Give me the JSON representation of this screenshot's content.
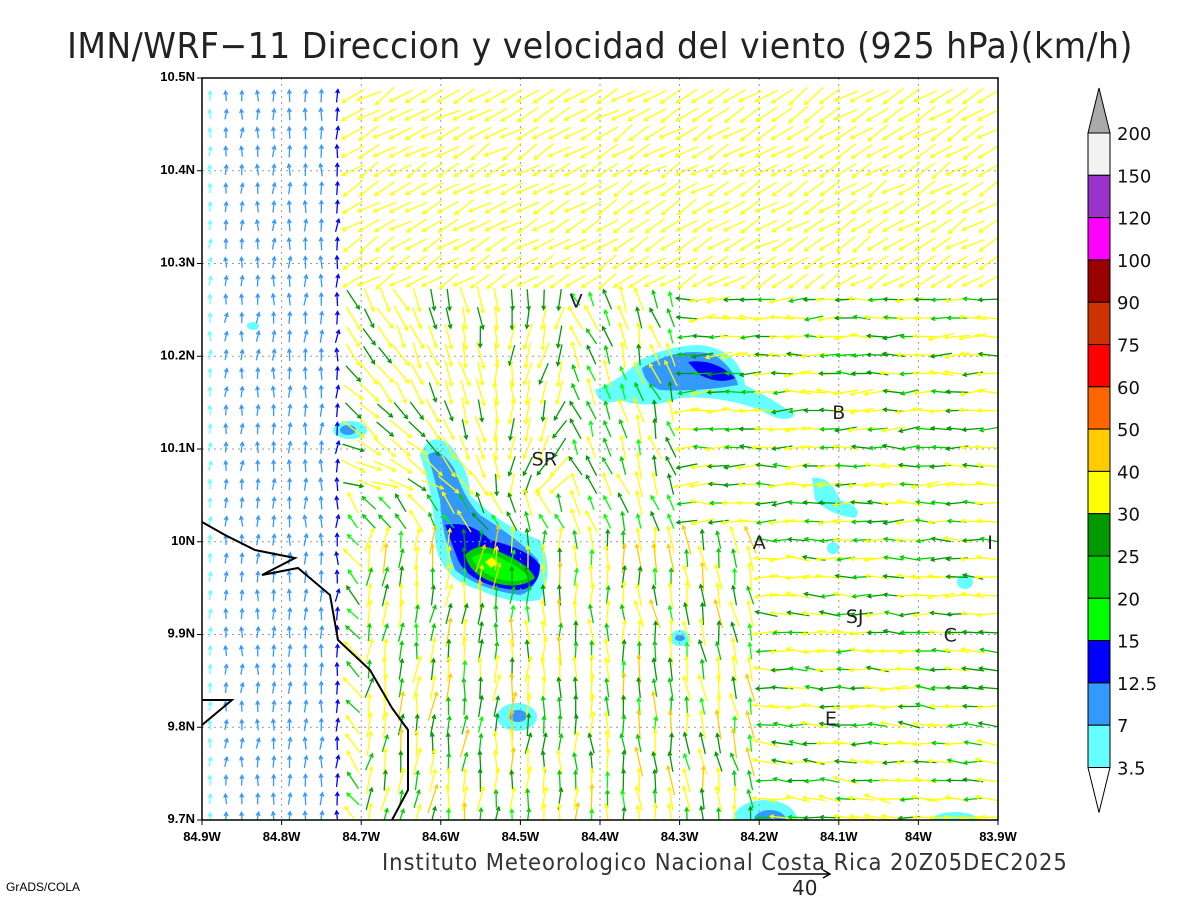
{
  "title": "IMN/WRF−11 Direccion y velocidad del viento (925 hPa)(km/h)",
  "footer": "Instituto Meteorologico Nacional Costa Rica 20Z05DEC2025",
  "credit": "GrADS/COLA",
  "reference_vector_label": "40",
  "map": {
    "lon_range": [
      -84.9,
      -83.9
    ],
    "lat_range": [
      9.7,
      10.5
    ],
    "x_ticks": [
      "84.9W",
      "84.8W",
      "84.7W",
      "84.6W",
      "84.5W",
      "84.4W",
      "84.3W",
      "84.2W",
      "84.1W",
      "84W",
      "83.9W"
    ],
    "y_ticks": [
      "10.5N",
      "10.4N",
      "10.3N",
      "10.2N",
      "10.1N",
      "10N",
      "9.9N",
      "9.8N",
      "9.7N"
    ],
    "cities": [
      {
        "label": "V",
        "lon": -84.43,
        "lat": 10.26
      },
      {
        "label": "SR",
        "lon": -84.47,
        "lat": 10.09
      },
      {
        "label": "B",
        "lon": -84.1,
        "lat": 10.14
      },
      {
        "label": "A",
        "lon": -84.2,
        "lat": 10.0
      },
      {
        "label": "I",
        "lon": -83.91,
        "lat": 10.0
      },
      {
        "label": "SJ",
        "lon": -84.08,
        "lat": 9.92
      },
      {
        "label": "C",
        "lon": -83.96,
        "lat": 9.9
      },
      {
        "label": "E",
        "lon": -84.11,
        "lat": 9.81
      }
    ]
  },
  "colorbar": {
    "labels": [
      "200",
      "150",
      "120",
      "100",
      "90",
      "75",
      "60",
      "50",
      "40",
      "30",
      "25",
      "20",
      "15",
      "12.5",
      "7",
      "3.5"
    ],
    "colors": [
      "#f2f2f2",
      "#9933cc",
      "#ff00ff",
      "#990000",
      "#cc3300",
      "#ff0000",
      "#ff6600",
      "#ffcc00",
      "#ffff00",
      "#009900",
      "#00cc00",
      "#00ff00",
      "#0000ff",
      "#3399ff",
      "#66ffff"
    ],
    "over_color": "#aaaaaa",
    "under_color": "#ffffff"
  }
}
